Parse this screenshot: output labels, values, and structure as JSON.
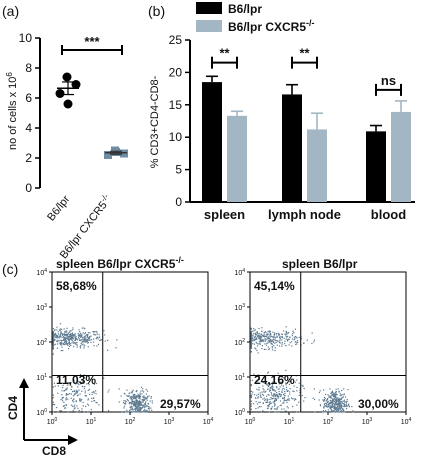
{
  "panel_labels": {
    "a": "(a)",
    "b": "(b)",
    "c": "(c)"
  },
  "colors": {
    "b6lpr": "#000000",
    "cxcr5ko": "#a3b6c3",
    "flow_dots": "#5d7a90",
    "axis": "#000000"
  },
  "chart_data": [
    {
      "id": "a",
      "type": "scatter",
      "ylabel": "no of cells x 10",
      "ylabel_exponent": "6",
      "ylim": [
        0,
        10
      ],
      "yticks": [
        "0",
        "2",
        "4",
        "6",
        "8",
        "10"
      ],
      "categories": [
        "B6/lpr",
        "B6/lpr CXCR5"
      ],
      "category_superscript": [
        "",
        "-/-"
      ],
      "series": [
        {
          "category": "B6/lpr",
          "marker": "circle",
          "points": [
            7.4,
            6.9,
            6.3,
            5.6
          ],
          "mean": 6.65,
          "sem": 0.42
        },
        {
          "category": "B6/lpr CXCR5-/-",
          "marker": "square",
          "points": [
            2.5,
            2.3,
            2.2,
            2.4
          ],
          "mean": 2.35,
          "sem": 0.1
        }
      ],
      "significance": [
        {
          "label": "***",
          "from": 0,
          "to": 1,
          "y": 9.2
        }
      ]
    },
    {
      "id": "b",
      "type": "bar",
      "ylabel": "% CD3+CD4-CD8-",
      "ylim": [
        0,
        25
      ],
      "yticks": [
        "0",
        "5",
        "10",
        "15",
        "20",
        "25"
      ],
      "categories": [
        "spleen",
        "lymph node",
        "blood"
      ],
      "legend": [
        "B6/lpr",
        "B6/lpr CXCR5"
      ],
      "legend_superscript": [
        "",
        "-/-"
      ],
      "series": [
        {
          "name": "B6/lpr",
          "values": [
            18.5,
            16.6,
            10.9
          ],
          "errors": [
            0.9,
            1.5,
            0.9
          ]
        },
        {
          "name": "B6/lpr CXCR5-/-",
          "values": [
            13.3,
            11.2,
            13.9
          ],
          "errors": [
            0.7,
            2.5,
            1.7
          ]
        }
      ],
      "significance": [
        {
          "label": "**",
          "category": 0,
          "y": 21.5
        },
        {
          "label": "**",
          "category": 1,
          "y": 21.5
        },
        {
          "label": "ns",
          "category": 2,
          "y": 17.3
        }
      ]
    },
    {
      "id": "c1",
      "type": "scatter",
      "title": "spleen B6/lpr CXCR5",
      "title_superscript": "-/-",
      "xlabel": "CD8",
      "ylabel": "CD4",
      "xscale": "log",
      "yscale": "log",
      "xlim": [
        1,
        10000
      ],
      "ylim": [
        1,
        10000
      ],
      "gate": {
        "x": 20,
        "y": 11
      },
      "quadrants": {
        "upper_left": "58,68%",
        "lower_left": "11,03%",
        "lower_right": "29,57%"
      },
      "clusters": [
        {
          "name": "CD4+",
          "x": 2.5,
          "y": 130,
          "spread": [
            0.45,
            0.13
          ],
          "count": 420
        },
        {
          "name": "DN",
          "x": 4,
          "y": 3,
          "spread": [
            0.35,
            0.25
          ],
          "count": 170
        },
        {
          "name": "CD8+",
          "x": 150,
          "y": 1.8,
          "spread": [
            0.16,
            0.2
          ],
          "count": 320
        }
      ]
    },
    {
      "id": "c2",
      "type": "scatter",
      "title": "spleen B6/lpr",
      "xscale": "log",
      "yscale": "log",
      "xlim": [
        1,
        10000
      ],
      "ylim": [
        1,
        10000
      ],
      "gate": {
        "x": 20,
        "y": 11
      },
      "quadrants": {
        "upper_left": "45,14%",
        "lower_left": "24,16%",
        "lower_right": "30,00%"
      },
      "clusters": [
        {
          "name": "CD4+",
          "x": 2.5,
          "y": 130,
          "spread": [
            0.45,
            0.13
          ],
          "count": 340
        },
        {
          "name": "DN",
          "x": 4,
          "y": 3,
          "spread": [
            0.35,
            0.25
          ],
          "count": 270
        },
        {
          "name": "CD8+",
          "x": 150,
          "y": 1.8,
          "spread": [
            0.16,
            0.2
          ],
          "count": 320
        }
      ]
    }
  ]
}
